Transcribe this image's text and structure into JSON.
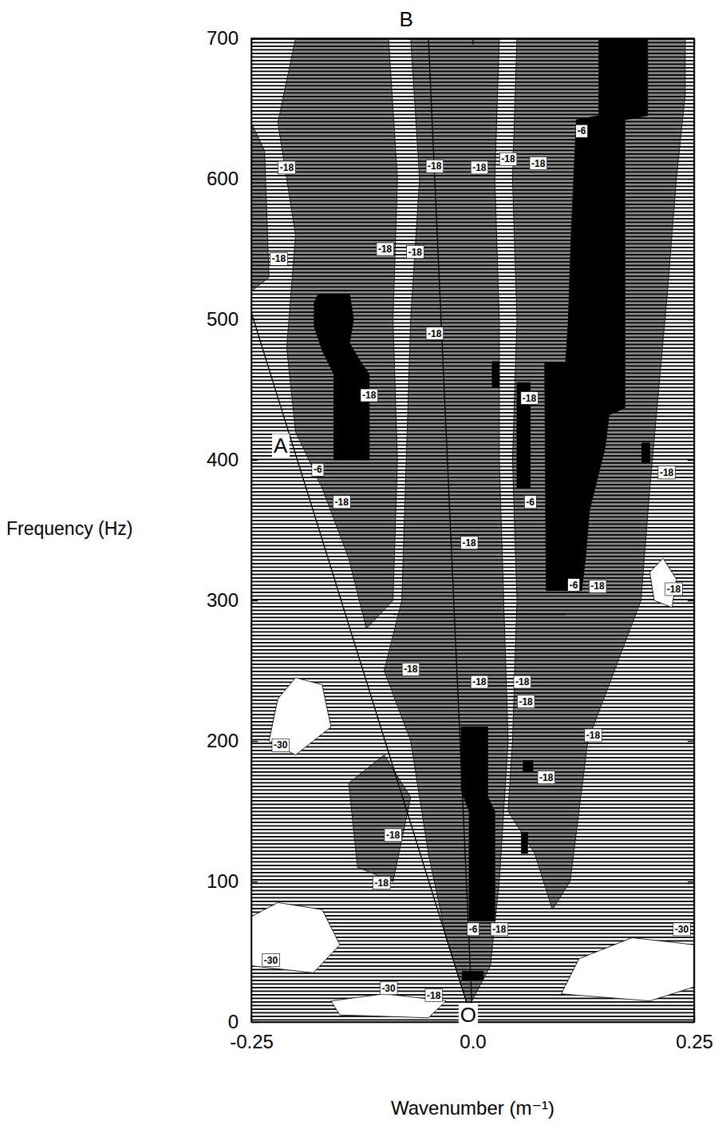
{
  "chart_data": {
    "type": "contour",
    "xlabel": "Wavenumber (m⁻¹)",
    "ylabel": "Frequency (Hz)",
    "xlim": [
      -0.25,
      0.25
    ],
    "ylim": [
      0,
      700
    ],
    "xticks": [
      -0.25,
      {
        "value": 0,
        "label": "0.0"
      },
      0.25
    ],
    "yticks": [
      0,
      100,
      200,
      300,
      400,
      500,
      600,
      700
    ],
    "grid": false,
    "regions": [
      {
        "level": -18,
        "color": "#8a8a8a",
        "polygons": [
          {
            "x": [
              -0.12,
              -0.09,
              -0.085,
              -0.09,
              -0.085,
              -0.095,
              -0.2,
              -0.22,
              -0.2,
              -0.21,
              -0.2,
              -0.17,
              -0.14
            ],
            "y": [
              280,
              300,
              400,
              500,
              600,
              700,
              700,
              640,
              560,
              480,
              420,
              380,
              330
            ]
          },
          {
            "x": [
              -0.005,
              0.02,
              0.03,
              0.04,
              0.035,
              0.03,
              0.03,
              0.025,
              0.03,
              -0.07,
              -0.06,
              -0.07,
              -0.075,
              -0.08,
              -0.1,
              -0.07,
              -0.05,
              -0.03
            ],
            "y": [
              10,
              40,
              100,
              200,
              300,
              400,
              500,
              600,
              700,
              700,
              600,
              500,
              400,
              300,
              250,
              200,
              120,
              60
            ]
          },
          {
            "x": [
              0.04,
              0.07,
              0.09,
              0.11,
              0.13,
              0.16,
              0.19,
              0.2,
              0.21,
              0.22,
              0.23,
              0.24,
              0.24,
              0.05,
              0.045,
              0.05,
              0.045,
              0.05,
              0.045
            ],
            "y": [
              150,
              120,
              80,
              100,
              200,
              250,
              300,
              380,
              450,
              520,
              600,
              660,
              700,
              700,
              600,
              500,
              400,
              300,
              200
            ]
          },
          {
            "x": [
              -0.13,
              -0.09,
              -0.07,
              -0.1,
              -0.14
            ],
            "y": [
              110,
              100,
              160,
              190,
              170
            ]
          },
          {
            "x": [
              -0.25,
              -0.23,
              -0.235,
              -0.25
            ],
            "y": [
              520,
              530,
              620,
              640
            ]
          }
        ]
      },
      {
        "level": -30,
        "color": "#ffffff",
        "polygons": [
          {
            "x": [
              -0.23,
              -0.2,
              -0.16,
              -0.17,
              -0.2,
              -0.22
            ],
            "y": [
              200,
              190,
              210,
              240,
              245,
              230
            ]
          },
          {
            "x": [
              -0.25,
              -0.18,
              -0.15,
              -0.17,
              -0.22,
              -0.25
            ],
            "y": [
              40,
              35,
              55,
              80,
              85,
              75
            ]
          },
          {
            "x": [
              0.1,
              0.2,
              0.25,
              0.25,
              0.18,
              0.12
            ],
            "y": [
              20,
              15,
              25,
              55,
              60,
              45
            ]
          },
          {
            "x": [
              0.205,
              0.225,
              0.23,
              0.215,
              0.2
            ],
            "y": [
              300,
              295,
              315,
              330,
              320
            ]
          },
          {
            "x": [
              -0.15,
              -0.05,
              -0.03,
              -0.1,
              -0.16
            ],
            "y": [
              5,
              3,
              15,
              20,
              15
            ]
          }
        ]
      },
      {
        "level": -6,
        "color": "#000000",
        "polygons": [
          {
            "x": [
              0.1425,
              0.1976,
              0.1976,
              0.1719,
              0.1719,
              0.154,
              0.1496,
              0.1319,
              0.1274,
              0.123,
              0.083,
              0.0813,
              0.105,
              0.108,
              0.111,
              0.117,
              0.1425
            ],
            "y": [
              700,
              700,
              645,
              642,
              437,
              432,
              409,
              364,
              330,
              307,
              307,
              469,
              469,
              500,
              557,
              642,
              645
            ]
          },
          {
            "x": [
              0.191,
              0.2,
              0.2,
              0.191
            ],
            "y": [
              398,
              398,
              412,
              412
            ]
          },
          {
            "x": [
              -0.1745,
              -0.139,
              -0.1345,
              -0.139,
              -0.1257,
              -0.1168,
              -0.1168,
              -0.1568,
              -0.1568,
              -0.17,
              -0.179,
              -0.179
            ],
            "y": [
              518,
              518,
              500,
              483,
              469,
              461,
              400,
              400,
              461,
              478,
              495,
              512
            ]
          },
          {
            "x": [
              -0.013,
              0.017,
              0.017,
              0.025,
              0.025,
              -0.004,
              -0.004,
              -0.013
            ],
            "y": [
              210,
              210,
              160,
              150,
              72,
              72,
              150,
              165
            ]
          },
          {
            "x": [
              -0.012,
              0.012,
              0.012,
              -0.012
            ],
            "y": [
              30,
              30,
              36,
              36
            ]
          },
          {
            "x": [
              0.05,
              0.065,
              0.065,
              0.05
            ],
            "y": [
              380,
              380,
              455,
              455
            ]
          },
          {
            "x": [
              0.022,
              0.03,
              0.03,
              0.022
            ],
            "y": [
              452,
              452,
              470,
              470
            ]
          },
          {
            "x": [
              0.057,
              0.068,
              0.068,
              0.057
            ],
            "y": [
              178,
              178,
              186,
              186
            ]
          },
          {
            "x": [
              0.055,
              0.062,
              0.062,
              0.055
            ],
            "y": [
              120,
              120,
              135,
              135
            ]
          }
        ]
      }
    ],
    "lines": [
      {
        "x": [
          0,
          -0.25
        ],
        "y": [
          0,
          505
        ]
      },
      {
        "x": [
          0,
          -0.05
        ],
        "y": [
          0,
          700
        ]
      },
      {
        "x": [
          -0.09,
          0.105
        ],
        "y": [
          290,
          290
        ]
      }
    ],
    "contour_labels": [
      {
        "x": -0.21,
        "y": 608,
        "value": -18
      },
      {
        "x": -0.043,
        "y": 609,
        "value": -18
      },
      {
        "x": 0.0075,
        "y": 608,
        "value": -18
      },
      {
        "x": 0.04,
        "y": 614,
        "value": -18
      },
      {
        "x": 0.074,
        "y": 611,
        "value": -18
      },
      {
        "x": 0.123,
        "y": 634,
        "value": -6
      },
      {
        "x": -0.219,
        "y": 543,
        "value": -18
      },
      {
        "x": -0.099,
        "y": 550,
        "value": -18
      },
      {
        "x": -0.065,
        "y": 548,
        "value": -18
      },
      {
        "x": 0.219,
        "y": 391,
        "value": -18
      },
      {
        "x": -0.117,
        "y": 446,
        "value": -18
      },
      {
        "x": 0.064,
        "y": 444,
        "value": -18
      },
      {
        "x": -0.175,
        "y": 393,
        "value": -6
      },
      {
        "x": -0.148,
        "y": 370,
        "value": -18
      },
      {
        "x": -0.043,
        "y": 490,
        "value": -18
      },
      {
        "x": -0.004,
        "y": 341,
        "value": -18
      },
      {
        "x": 0.065,
        "y": 370,
        "value": -6
      },
      {
        "x": 0.114,
        "y": 311,
        "value": -6
      },
      {
        "x": 0.141,
        "y": 310,
        "value": -18
      },
      {
        "x": 0.227,
        "y": 308,
        "value": -18
      },
      {
        "x": -0.07,
        "y": 251,
        "value": -18
      },
      {
        "x": 0.0075,
        "y": 242,
        "value": -18
      },
      {
        "x": 0.056,
        "y": 242,
        "value": -18
      },
      {
        "x": 0.06,
        "y": 228,
        "value": -18
      },
      {
        "x": 0.136,
        "y": 204,
        "value": -18
      },
      {
        "x": 0.083,
        "y": 174,
        "value": -18
      },
      {
        "x": -0.09,
        "y": 133,
        "value": -18
      },
      {
        "x": -0.217,
        "y": 197,
        "value": -30
      },
      {
        "x": -0.103,
        "y": 99,
        "value": -18
      },
      {
        "x": 0.0005,
        "y": 66,
        "value": -6
      },
      {
        "x": 0.03,
        "y": 66,
        "value": -18
      },
      {
        "x": 0.236,
        "y": 66,
        "value": -30
      },
      {
        "x": -0.228,
        "y": 44,
        "value": -30
      },
      {
        "x": -0.095,
        "y": 24,
        "value": -30
      },
      {
        "x": -0.044,
        "y": 19,
        "value": -18
      }
    ],
    "annotations": [
      {
        "text": "A",
        "x": -0.217,
        "y": 410
      },
      {
        "text": "B",
        "x": -0.075,
        "y": 700
      },
      {
        "text": "O",
        "x": -0.005,
        "y": 5
      }
    ]
  }
}
